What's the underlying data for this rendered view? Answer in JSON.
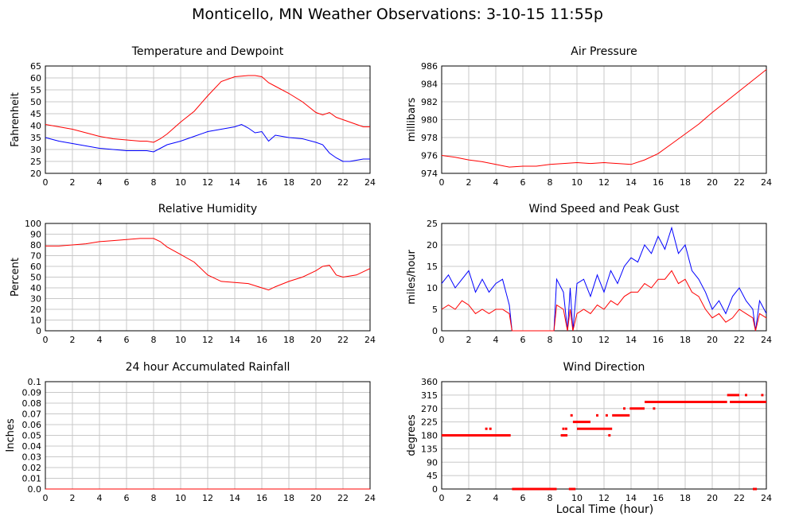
{
  "page": {
    "title": "Monticello, MN Weather Observations: 3-10-15 11:55p",
    "x_footer": "Local Time (hour)"
  },
  "chart_data": [
    {
      "id": "temp",
      "type": "line",
      "title": "Temperature and Dewpoint",
      "ylabel": "Fahrenheit",
      "xlim": [
        0,
        24
      ],
      "ylim": [
        20,
        65
      ],
      "xticks": [
        0,
        2,
        4,
        6,
        8,
        10,
        12,
        14,
        16,
        18,
        20,
        22,
        24
      ],
      "yticks": [
        20,
        25,
        30,
        35,
        40,
        45,
        50,
        55,
        60,
        65
      ],
      "yticklabels": [
        "20",
        "25",
        "30",
        "35",
        "40",
        "45",
        "50",
        "55",
        "60",
        "65"
      ],
      "grid": true,
      "series": [
        {
          "color": "#ff0000",
          "x": [
            0,
            1,
            2,
            3,
            4,
            5,
            6,
            7,
            7.5,
            8,
            8.5,
            9,
            9.5,
            10,
            11,
            12,
            13,
            14,
            15,
            15.5,
            16,
            16.5,
            17,
            18,
            19,
            20,
            20.5,
            21,
            21.5,
            22,
            22.5,
            23,
            23.5,
            24
          ],
          "y": [
            40.5,
            39.5,
            38.5,
            37,
            35.5,
            34.5,
            34,
            33.5,
            33.5,
            33,
            34.5,
            36.5,
            39,
            41.5,
            46,
            52.5,
            58.5,
            60.5,
            61,
            61,
            60.5,
            58,
            56.5,
            53.5,
            50,
            45.5,
            44.5,
            45.5,
            43.5,
            42.5,
            41.5,
            40.5,
            39.5,
            39.5
          ]
        },
        {
          "color": "#0000ff",
          "x": [
            0,
            1,
            2,
            3,
            4,
            5,
            6,
            7,
            7.5,
            8,
            8.5,
            9,
            10,
            11,
            12,
            13,
            14,
            14.5,
            15,
            15.5,
            16,
            16.5,
            17,
            18,
            19,
            20,
            20.5,
            21,
            21.5,
            22,
            22.5,
            23,
            23.5,
            24
          ],
          "y": [
            35,
            33.5,
            32.5,
            31.5,
            30.5,
            30,
            29.5,
            29.5,
            29.5,
            29,
            30.5,
            32,
            33.5,
            35.5,
            37.5,
            38.5,
            39.5,
            40.5,
            39,
            37,
            37.5,
            33.5,
            36,
            35,
            34.5,
            33,
            32,
            28.5,
            26.5,
            25,
            25,
            25.5,
            26,
            26
          ]
        }
      ]
    },
    {
      "id": "pressure",
      "type": "line",
      "title": "Air Pressure",
      "ylabel": "millibars",
      "xlim": [
        0,
        24
      ],
      "ylim": [
        974,
        986
      ],
      "xticks": [
        0,
        2,
        4,
        6,
        8,
        10,
        12,
        14,
        16,
        18,
        20,
        22,
        24
      ],
      "yticks": [
        974,
        976,
        978,
        980,
        982,
        984,
        986
      ],
      "yticklabels": [
        "974",
        "976",
        "978",
        "980",
        "982",
        "984",
        "986"
      ],
      "grid": true,
      "series": [
        {
          "color": "#ff0000",
          "x": [
            0,
            1,
            2,
            3,
            4,
            5,
            6,
            7,
            8,
            9,
            10,
            11,
            12,
            13,
            14,
            15,
            16,
            17,
            18,
            19,
            20,
            21,
            22,
            23,
            24
          ],
          "y": [
            976,
            975.8,
            975.5,
            975.3,
            975,
            974.7,
            974.8,
            974.8,
            975,
            975.1,
            975.2,
            975.1,
            975.2,
            975.1,
            975,
            975.5,
            976.2,
            977.3,
            978.4,
            979.5,
            980.8,
            982,
            983.2,
            984.4,
            985.6
          ]
        }
      ]
    },
    {
      "id": "humidity",
      "type": "line",
      "title": "Relative Humidity",
      "ylabel": "Percent",
      "xlim": [
        0,
        24
      ],
      "ylim": [
        0,
        100
      ],
      "xticks": [
        0,
        2,
        4,
        6,
        8,
        10,
        12,
        14,
        16,
        18,
        20,
        22,
        24
      ],
      "yticks": [
        0,
        10,
        20,
        30,
        40,
        50,
        60,
        70,
        80,
        90,
        100
      ],
      "yticklabels": [
        "0",
        "10",
        "20",
        "30",
        "40",
        "50",
        "60",
        "70",
        "80",
        "90",
        "100"
      ],
      "grid": true,
      "series": [
        {
          "color": "#ff0000",
          "x": [
            0,
            1,
            2,
            3,
            4,
            5,
            6,
            7,
            8,
            8.5,
            9,
            10,
            11,
            12,
            13,
            14,
            15,
            16,
            16.5,
            17,
            18,
            19,
            20,
            20.5,
            21,
            21.5,
            22,
            23,
            24
          ],
          "y": [
            79,
            79,
            80,
            81,
            83,
            84,
            85,
            86,
            86,
            83,
            78,
            71,
            64,
            52,
            46,
            45,
            44,
            40,
            38,
            41,
            46,
            50,
            56,
            60,
            61,
            52,
            50,
            52,
            58
          ]
        }
      ]
    },
    {
      "id": "wind",
      "type": "line",
      "title": "Wind Speed and Peak Gust",
      "ylabel": "miles/hour",
      "xlim": [
        0,
        24
      ],
      "ylim": [
        0,
        25
      ],
      "xticks": [
        0,
        2,
        4,
        6,
        8,
        10,
        12,
        14,
        16,
        18,
        20,
        22,
        24
      ],
      "yticks": [
        0,
        5,
        10,
        15,
        20,
        25
      ],
      "yticklabels": [
        "0",
        "5",
        "10",
        "15",
        "20",
        "25"
      ],
      "grid": true,
      "series": [
        {
          "color": "#0000ff",
          "x": [
            0,
            0.5,
            1,
            1.5,
            2,
            2.5,
            3,
            3.5,
            4,
            4.5,
            5,
            5.2,
            6,
            7,
            8,
            8.3,
            8.5,
            9,
            9.3,
            9.5,
            9.7,
            10,
            10.5,
            11,
            11.5,
            12,
            12.5,
            13,
            13.5,
            14,
            14.5,
            15,
            15.5,
            16,
            16.5,
            17,
            17.5,
            18,
            18.5,
            19,
            19.5,
            20,
            20.5,
            21,
            21.5,
            22,
            22.5,
            23,
            23.2,
            23.5,
            24
          ],
          "y": [
            11,
            13,
            10,
            12,
            14,
            9,
            12,
            9,
            11,
            12,
            6,
            0,
            0,
            0,
            0,
            0,
            12,
            9,
            0,
            10,
            0,
            11,
            12,
            8,
            13,
            9,
            14,
            11,
            15,
            17,
            16,
            20,
            18,
            22,
            19,
            24,
            18,
            20,
            14,
            12,
            9,
            5,
            7,
            4,
            8,
            10,
            7,
            5,
            0,
            7,
            4
          ]
        },
        {
          "color": "#ff0000",
          "x": [
            0,
            0.5,
            1,
            1.5,
            2,
            2.5,
            3,
            3.5,
            4,
            4.5,
            5,
            5.2,
            6,
            7,
            8,
            8.3,
            8.5,
            9,
            9.3,
            9.5,
            9.7,
            10,
            10.5,
            11,
            11.5,
            12,
            12.5,
            13,
            13.5,
            14,
            14.5,
            15,
            15.5,
            16,
            16.5,
            17,
            17.5,
            18,
            18.5,
            19,
            19.5,
            20,
            20.5,
            21,
            21.5,
            22,
            22.5,
            23,
            23.2,
            23.5,
            24
          ],
          "y": [
            5,
            6,
            5,
            7,
            6,
            4,
            5,
            4,
            5,
            5,
            4,
            0,
            0,
            0,
            0,
            0,
            6,
            5,
            0,
            5,
            0,
            4,
            5,
            4,
            6,
            5,
            7,
            6,
            8,
            9,
            9,
            11,
            10,
            12,
            12,
            14,
            11,
            12,
            9,
            8,
            5,
            3,
            4,
            2,
            3,
            5,
            4,
            3,
            0,
            4,
            3
          ]
        }
      ]
    },
    {
      "id": "rain",
      "type": "line",
      "title": "24 hour Accumulated Rainfall",
      "ylabel": "Inches",
      "xlim": [
        0,
        24
      ],
      "ylim": [
        0,
        0.1
      ],
      "xticks": [
        0,
        2,
        4,
        6,
        8,
        10,
        12,
        14,
        16,
        18,
        20,
        22,
        24
      ],
      "yticks": [
        0,
        0.01,
        0.02,
        0.03,
        0.04,
        0.05,
        0.06,
        0.07,
        0.08,
        0.09,
        0.1
      ],
      "yticklabels": [
        "0.0",
        "0.01",
        "0.02",
        "0.03",
        "0.04",
        "0.05",
        "0.06",
        "0.07",
        "0.08",
        "0.09",
        "0.1"
      ],
      "grid": true,
      "series": [
        {
          "color": "#ff0000",
          "x": [
            0,
            24
          ],
          "y": [
            0,
            0
          ]
        }
      ]
    },
    {
      "id": "direction",
      "type": "scatter",
      "title": "Wind Direction",
      "ylabel": "degrees",
      "xlim": [
        0,
        24
      ],
      "ylim": [
        0,
        360
      ],
      "xticks": [
        0,
        2,
        4,
        6,
        8,
        10,
        12,
        14,
        16,
        18,
        20,
        22,
        24
      ],
      "yticks": [
        0,
        45,
        90,
        135,
        180,
        225,
        270,
        315,
        360
      ],
      "yticklabels": [
        "0",
        "45",
        "90",
        "135",
        "180",
        "225",
        "270",
        "315",
        "360"
      ],
      "grid": true,
      "segments": [
        {
          "x0": 0,
          "x1": 5.1,
          "y": 180
        },
        {
          "x0": 5.2,
          "x1": 8.5,
          "y": 0
        },
        {
          "x0": 8.8,
          "x1": 9.3,
          "y": 180
        },
        {
          "x0": 9.4,
          "x1": 9.9,
          "y": 0
        },
        {
          "x0": 9.7,
          "x1": 11.0,
          "y": 225
        },
        {
          "x0": 10.0,
          "x1": 12.0,
          "y": 202
        },
        {
          "x0": 12.0,
          "x1": 12.6,
          "y": 202
        },
        {
          "x0": 12.6,
          "x1": 13.9,
          "y": 247
        },
        {
          "x0": 13.9,
          "x1": 15.0,
          "y": 270
        },
        {
          "x0": 15.0,
          "x1": 21.1,
          "y": 292
        },
        {
          "x0": 21.3,
          "x1": 24.0,
          "y": 292
        },
        {
          "x0": 21.1,
          "x1": 22.0,
          "y": 315
        },
        {
          "x0": 23.0,
          "x1": 23.3,
          "y": 0
        }
      ],
      "points": {
        "x": [
          3.3,
          3.6,
          9.0,
          9.2,
          9.6,
          11.5,
          12.2,
          12.4,
          13.5,
          15.7,
          22.5,
          23.7
        ],
        "y": [
          202,
          202,
          202,
          202,
          247,
          247,
          247,
          180,
          270,
          270,
          315,
          315
        ]
      }
    }
  ]
}
